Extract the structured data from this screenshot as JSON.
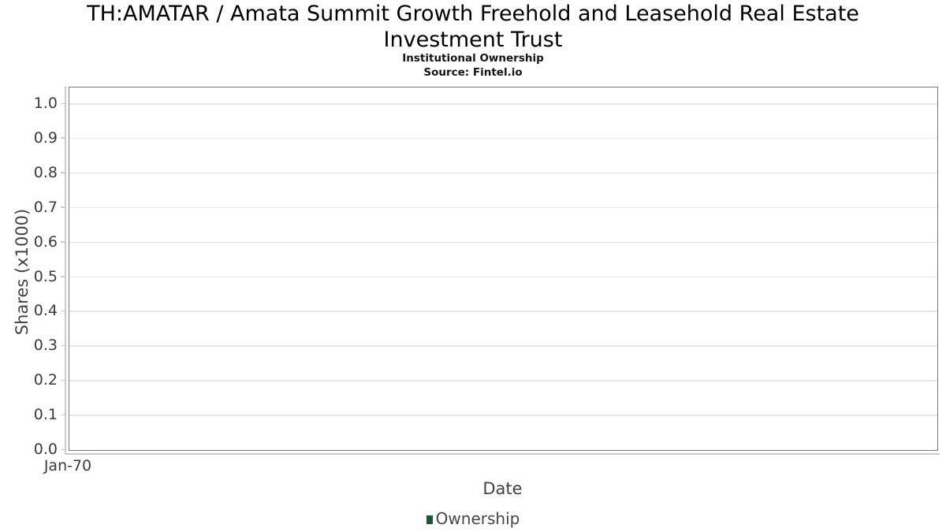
{
  "header": {
    "title_lines": [
      "TH:AMATAR / Amata Summit Growth Freehold and Leasehold Real Estate",
      "Investment Trust"
    ],
    "subtitle": "Institutional Ownership",
    "source": "Source: Fintel.io"
  },
  "chart_data": {
    "type": "line",
    "title": "TH:AMATAR / Amata Summit Growth Freehold and Leasehold Real Estate Investment Trust",
    "subtitle": "Institutional Ownership",
    "source": "Source: Fintel.io",
    "xlabel": "Date",
    "ylabel": "Shares (x1000)",
    "x_ticks": [
      "Jan-70"
    ],
    "y_ticks": [
      "0.0",
      "0.1",
      "0.2",
      "0.3",
      "0.4",
      "0.5",
      "0.6",
      "0.7",
      "0.8",
      "0.9",
      "1.0"
    ],
    "ylim": [
      0,
      1.05
    ],
    "grid": true,
    "legend_position": "bottom",
    "series": [
      {
        "name": "Ownership",
        "color": "#19582b",
        "x": [],
        "values": []
      }
    ]
  },
  "colors": {
    "plot_border": "#787878",
    "gridline": "#e6e6e6",
    "axis_line": "#cbcbcb",
    "tick_text": "#3b3b3b",
    "title_text": "#000000",
    "legend_green": "#19582b"
  }
}
